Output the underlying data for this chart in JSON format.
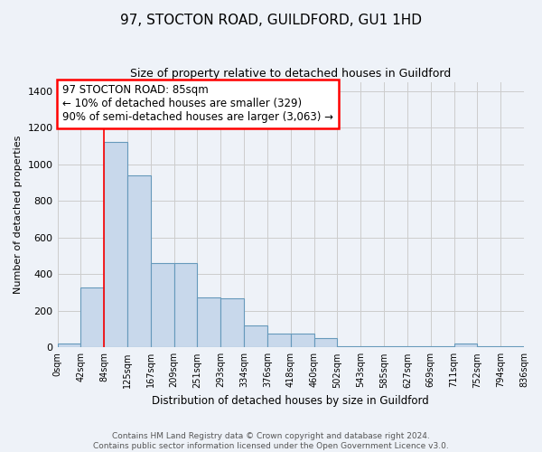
{
  "title": "97, STOCTON ROAD, GUILDFORD, GU1 1HD",
  "subtitle": "Size of property relative to detached houses in Guildford",
  "xlabel": "Distribution of detached houses by size in Guildford",
  "ylabel": "Number of detached properties",
  "footer_line1": "Contains HM Land Registry data © Crown copyright and database right 2024.",
  "footer_line2": "Contains public sector information licensed under the Open Government Licence v3.0.",
  "bar_values": [
    20,
    329,
    1120,
    940,
    460,
    460,
    275,
    270,
    120,
    75,
    75,
    50,
    5,
    5,
    5,
    5,
    5,
    20,
    5,
    5
  ],
  "bin_labels": [
    "0sqm",
    "42sqm",
    "84sqm",
    "125sqm",
    "167sqm",
    "209sqm",
    "251sqm",
    "293sqm",
    "334sqm",
    "376sqm",
    "418sqm",
    "460sqm",
    "502sqm",
    "543sqm",
    "585sqm",
    "627sqm",
    "669sqm",
    "711sqm",
    "752sqm",
    "794sqm",
    "836sqm"
  ],
  "bar_color": "#c8d8eb",
  "bar_edge_color": "#6699bb",
  "property_line_x": 2,
  "annotation_label": "97 STOCTON ROAD: 85sqm",
  "annotation_line1": "← 10% of detached houses are smaller (329)",
  "annotation_line2": "90% of semi-detached houses are larger (3,063) →",
  "annotation_box_color": "white",
  "annotation_box_edge": "red",
  "ylim": [
    0,
    1450
  ],
  "yticks": [
    0,
    200,
    400,
    600,
    800,
    1000,
    1200,
    1400
  ],
  "grid_color": "#cccccc",
  "background_color": "#eef2f8"
}
